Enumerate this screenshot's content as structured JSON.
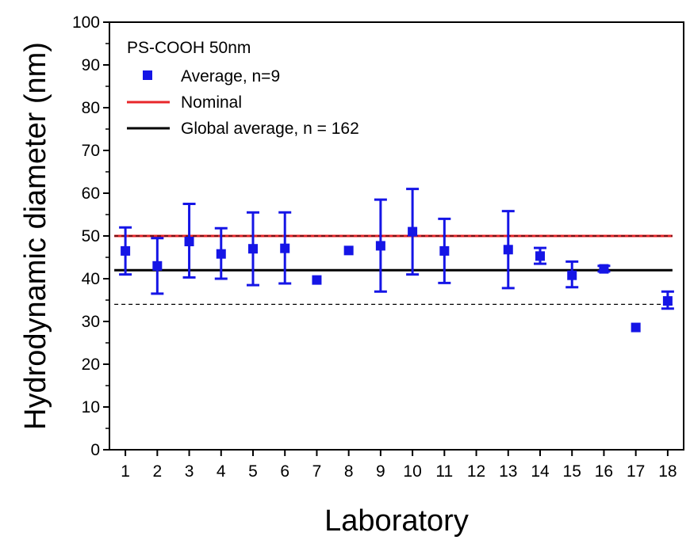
{
  "chart_data": {
    "type": "scatter",
    "title": "",
    "xlabel": "Laboratory",
    "ylabel": "Hydrodynamic diameter (nm)",
    "xlim": [
      0.5,
      18.5
    ],
    "ylim": [
      0,
      100
    ],
    "yticks": [
      0,
      10,
      20,
      30,
      40,
      50,
      60,
      70,
      80,
      90,
      100
    ],
    "categories": [
      "1",
      "2",
      "3",
      "4",
      "5",
      "6",
      "7",
      "8",
      "9",
      "10",
      "11",
      "12",
      "13",
      "14",
      "15",
      "16",
      "17",
      "18"
    ],
    "legend": {
      "title": "PS-COOH 50nm",
      "placement": "top-left",
      "entries": [
        "Average, n=9",
        "Nominal",
        "Global average, n = 162"
      ]
    },
    "series": [
      {
        "name": "Average, n=9",
        "color": "#1515e6",
        "marker": "square",
        "points": [
          {
            "x": "1",
            "y": 46.5,
            "err_low": 41.0,
            "err_high": 52.0
          },
          {
            "x": "2",
            "y": 43.0,
            "err_low": 36.5,
            "err_high": 49.5
          },
          {
            "x": "3",
            "y": 48.7,
            "err_low": 40.3,
            "err_high": 57.5
          },
          {
            "x": "4",
            "y": 45.8,
            "err_low": 40.0,
            "err_high": 51.8
          },
          {
            "x": "5",
            "y": 47.0,
            "err_low": 38.5,
            "err_high": 55.5
          },
          {
            "x": "6",
            "y": 47.1,
            "err_low": 38.9,
            "err_high": 55.5
          },
          {
            "x": "7",
            "y": 39.7,
            "err_low": null,
            "err_high": null
          },
          {
            "x": "8",
            "y": 46.6,
            "err_low": null,
            "err_high": null
          },
          {
            "x": "9",
            "y": 47.7,
            "err_low": 37.0,
            "err_high": 58.5
          },
          {
            "x": "10",
            "y": 51.0,
            "err_low": 41.0,
            "err_high": 61.0
          },
          {
            "x": "11",
            "y": 46.5,
            "err_low": 39.0,
            "err_high": 54.0
          },
          {
            "x": "13",
            "y": 46.8,
            "err_low": 37.8,
            "err_high": 55.8
          },
          {
            "x": "14",
            "y": 45.3,
            "err_low": 43.5,
            "err_high": 47.2
          },
          {
            "x": "15",
            "y": 40.8,
            "err_low": 38.0,
            "err_high": 44.0
          },
          {
            "x": "16",
            "y": 42.3,
            "err_low": 41.7,
            "err_high": 43.0
          },
          {
            "x": "17",
            "y": 28.6,
            "err_low": null,
            "err_high": null
          },
          {
            "x": "18",
            "y": 34.8,
            "err_low": 33.0,
            "err_high": 37.0
          }
        ]
      },
      {
        "name": "Nominal",
        "type": "hline",
        "y": 50,
        "color": "#e8262a",
        "dashed_overlay_color": "#000000"
      },
      {
        "name": "Global average, n = 162",
        "type": "hline",
        "y": 42,
        "color": "#000000"
      },
      {
        "type": "hline",
        "y": 34,
        "color": "#000000",
        "style": "dashed"
      }
    ]
  }
}
